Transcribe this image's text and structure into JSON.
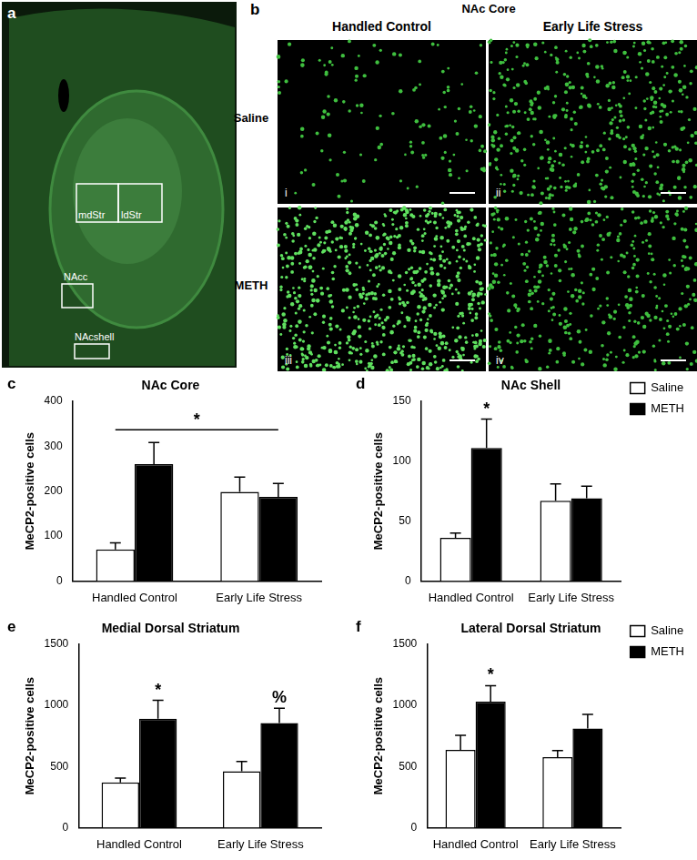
{
  "panels": {
    "a": {
      "letter": "a",
      "regions": [
        "mdStr",
        "ldStr",
        "NAcc",
        "NAcshell"
      ]
    },
    "b": {
      "letter": "b",
      "title": "NAc Core",
      "columns": [
        "Handled Control",
        "Early Life Stress"
      ],
      "rows": [
        "Saline",
        "METH"
      ],
      "images": [
        "i",
        "ii",
        "iii",
        "iv"
      ]
    }
  },
  "chart_data": [
    {
      "type": "bar",
      "panel": "c",
      "title": "NAc Core",
      "y_label": "MeCP2-positive cells",
      "categories": [
        "Handled Control",
        "Early Life Stress"
      ],
      "series": [
        {
          "name": "Saline",
          "color": "#ffffff",
          "values": [
            70,
            198
          ],
          "errors": [
            15,
            33
          ]
        },
        {
          "name": "METH",
          "color": "#000000",
          "values": [
            260,
            187
          ],
          "errors": [
            48,
            30
          ]
        }
      ],
      "ylim": [
        0,
        400
      ],
      "yticks": [
        0,
        100,
        200,
        300,
        400
      ],
      "grid": false,
      "annotations": [
        {
          "text": "*",
          "category": [
            0,
            1
          ],
          "series": 1
        }
      ]
    },
    {
      "type": "bar",
      "panel": "d",
      "title": "NAc Shell",
      "y_label": "MeCP2-positive cells",
      "categories": [
        "Handled Control",
        "Early Life Stress"
      ],
      "series": [
        {
          "name": "Saline",
          "color": "#ffffff",
          "values": [
            36,
            67
          ],
          "errors": [
            4,
            14
          ]
        },
        {
          "name": "METH",
          "color": "#000000",
          "values": [
            111,
            69
          ],
          "errors": [
            24,
            10
          ]
        }
      ],
      "ylim": [
        0,
        150
      ],
      "yticks": [
        0,
        50,
        100,
        150
      ],
      "grid": false,
      "legend": "right",
      "annotations": [
        {
          "text": "*",
          "category": 0,
          "series": 1
        }
      ]
    },
    {
      "type": "bar",
      "panel": "e",
      "title": "Medial Dorsal Striatum",
      "y_label": "MeCP2-positive cells",
      "categories": [
        "Handled Control",
        "Early Life Stress"
      ],
      "series": [
        {
          "name": "Saline",
          "color": "#ffffff",
          "values": [
            370,
            460
          ],
          "errors": [
            35,
            80
          ]
        },
        {
          "name": "METH",
          "color": "#000000",
          "values": [
            890,
            855
          ],
          "errors": [
            150,
            120
          ]
        }
      ],
      "ylim": [
        0,
        1500
      ],
      "yticks": [
        0,
        500,
        1000,
        1500
      ],
      "grid": false,
      "annotations": [
        {
          "text": "*",
          "category": 0,
          "series": 1
        },
        {
          "text": "%",
          "category": 1,
          "series": 1
        }
      ]
    },
    {
      "type": "bar",
      "panel": "f",
      "title": "Lateral Dorsal Striatum",
      "y_label": "MeCP2-positive cells",
      "categories": [
        "Handled Control",
        "Early Life Stress"
      ],
      "series": [
        {
          "name": "Saline",
          "color": "#ffffff",
          "values": [
            635,
            575
          ],
          "errors": [
            120,
            55
          ]
        },
        {
          "name": "METH",
          "color": "#000000",
          "values": [
            1030,
            810
          ],
          "errors": [
            130,
            115
          ]
        }
      ],
      "ylim": [
        0,
        1500
      ],
      "yticks": [
        0,
        500,
        1000,
        1500
      ],
      "grid": false,
      "legend": "right",
      "annotations": [
        {
          "text": "*",
          "category": 0,
          "series": 1
        }
      ]
    }
  ]
}
